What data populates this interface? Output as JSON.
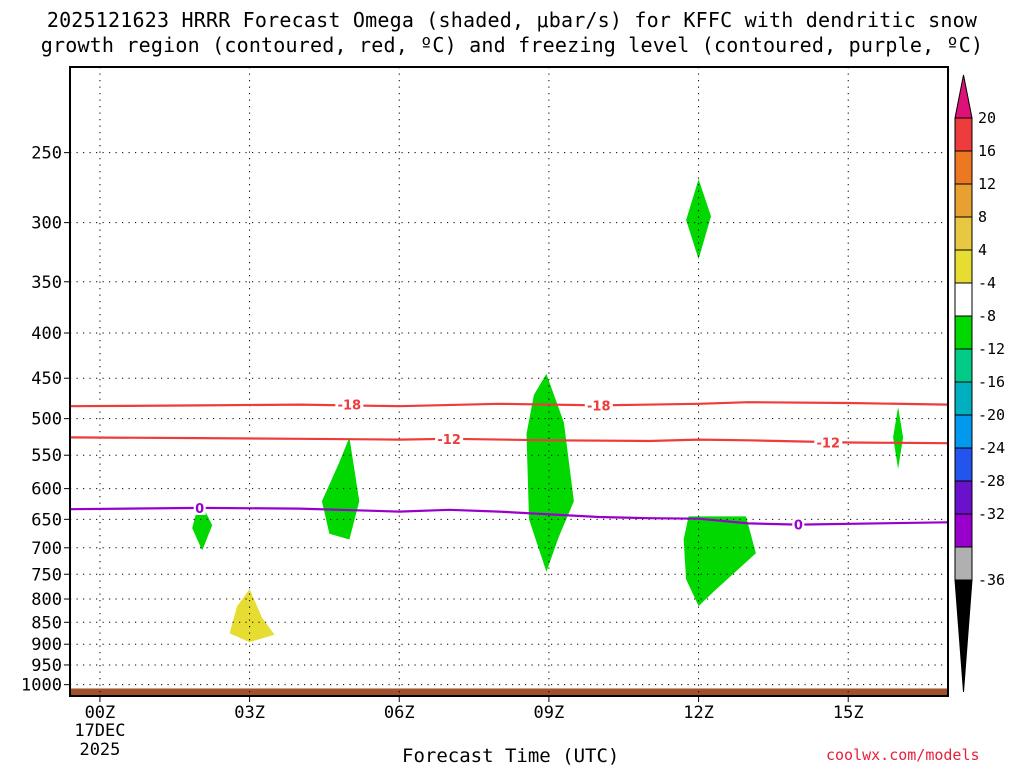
{
  "title": {
    "line1": "2025121623 HRRR Forecast Omega (shaded, μbar/s) for KFFC with dendritic snow",
    "line2": "growth region (contoured, red, ºC) and freezing level (contoured, purple, ºC)"
  },
  "credit": "coolwx.com/models",
  "chart_data": {
    "type": "heatmap",
    "xlabel": "Forecast Time (UTC)",
    "ylabel": "",
    "xlim_hours": [
      -0.6,
      17
    ],
    "ylim_hPa": [
      1030,
      200
    ],
    "y_scale": "log",
    "grid": true,
    "x_ticks": [
      {
        "hour": 0,
        "label": "00Z",
        "sub1": "17DEC",
        "sub2": "2025"
      },
      {
        "hour": 3,
        "label": "03Z"
      },
      {
        "hour": 6,
        "label": "06Z"
      },
      {
        "hour": 9,
        "label": "09Z"
      },
      {
        "hour": 12,
        "label": "12Z"
      },
      {
        "hour": 15,
        "label": "15Z"
      }
    ],
    "y_ticks": [
      "250",
      "300",
      "350",
      "400",
      "450",
      "500",
      "550",
      "600",
      "650",
      "700",
      "750",
      "800",
      "850",
      "900",
      "950",
      "1000"
    ],
    "ground_below_hPa": 1010,
    "ground_color": "#a0522d",
    "omega_regions": [
      {
        "color": "#00d800",
        "value_range": [
          -8,
          -4
        ],
        "points": [
          [
            2.0,
            618
          ],
          [
            2.25,
            660
          ],
          [
            2.05,
            705
          ],
          [
            1.85,
            665
          ]
        ]
      },
      {
        "color": "#00d800",
        "value_range": [
          -8,
          -4
        ],
        "points": [
          [
            5.0,
            525
          ],
          [
            5.2,
            620
          ],
          [
            5.0,
            685
          ],
          [
            4.6,
            675
          ],
          [
            4.45,
            620
          ],
          [
            4.8,
            560
          ]
        ]
      },
      {
        "color": "#00d800",
        "value_range": [
          -8,
          -4
        ],
        "points": [
          [
            8.95,
            445
          ],
          [
            9.3,
            505
          ],
          [
            9.5,
            620
          ],
          [
            9.2,
            680
          ],
          [
            8.95,
            745
          ],
          [
            8.6,
            650
          ],
          [
            8.55,
            520
          ],
          [
            8.7,
            470
          ]
        ]
      },
      {
        "color": "#00d800",
        "value_range": [
          -8,
          -4
        ],
        "points": [
          [
            12.0,
            268
          ],
          [
            12.25,
            295
          ],
          [
            12.0,
            330
          ],
          [
            11.75,
            298
          ]
        ]
      },
      {
        "color": "#00d800",
        "value_range": [
          -8,
          -4
        ],
        "points": [
          [
            11.8,
            645
          ],
          [
            12.95,
            645
          ],
          [
            13.15,
            710
          ],
          [
            12.3,
            785
          ],
          [
            12.0,
            815
          ],
          [
            11.75,
            760
          ],
          [
            11.7,
            685
          ]
        ]
      },
      {
        "color": "#00d800",
        "value_range": [
          -8,
          -4
        ],
        "points": [
          [
            16.0,
            485
          ],
          [
            16.1,
            525
          ],
          [
            16.0,
            570
          ],
          [
            15.9,
            525
          ]
        ]
      },
      {
        "color": "#e6dc32",
        "value_range": [
          4,
          8
        ],
        "points": [
          [
            3.0,
            780
          ],
          [
            3.25,
            840
          ],
          [
            3.5,
            878
          ],
          [
            3.0,
            895
          ],
          [
            2.6,
            875
          ],
          [
            2.75,
            815
          ]
        ]
      }
    ],
    "contours": [
      {
        "name": "-18",
        "color": "#ee3c3c",
        "label": "-18",
        "points": [
          [
            -0.6,
            484
          ],
          [
            2,
            483
          ],
          [
            4,
            482
          ],
          [
            6,
            484
          ],
          [
            8,
            481
          ],
          [
            10,
            483
          ],
          [
            12,
            481
          ],
          [
            13,
            479
          ],
          [
            15,
            480
          ],
          [
            17,
            482
          ]
        ],
        "label_at": [
          [
            5,
            482
          ],
          [
            10,
            483
          ]
        ]
      },
      {
        "name": "-12",
        "color": "#ee3c3c",
        "label": "-12",
        "points": [
          [
            -0.6,
            525
          ],
          [
            2,
            526
          ],
          [
            4,
            527
          ],
          [
            6,
            528
          ],
          [
            7,
            527
          ],
          [
            9,
            529
          ],
          [
            11,
            530
          ],
          [
            12,
            528
          ],
          [
            13,
            529
          ],
          [
            15,
            532
          ],
          [
            17,
            533
          ]
        ],
        "label_at": [
          [
            7,
            527
          ],
          [
            14.6,
            532
          ]
        ]
      },
      {
        "name": "0",
        "color": "#9900cc",
        "label": "0",
        "points": [
          [
            -0.6,
            633
          ],
          [
            2,
            631
          ],
          [
            4,
            632
          ],
          [
            6,
            637
          ],
          [
            7,
            634
          ],
          [
            8,
            637
          ],
          [
            10,
            646
          ],
          [
            11,
            648
          ],
          [
            12,
            649
          ],
          [
            13,
            657
          ],
          [
            14,
            659
          ],
          [
            17,
            655
          ]
        ],
        "label_at": [
          [
            2,
            631
          ],
          [
            14,
            659
          ]
        ]
      }
    ]
  },
  "colorbar": {
    "labels": [
      "20",
      "16",
      "12",
      "8",
      "4",
      "-4",
      "-8",
      "-12",
      "-16",
      "-20",
      "-24",
      "-28",
      "-32",
      "-36"
    ],
    "top_color": "#dd1177",
    "bottom_color": "#000000",
    "colors": [
      "#ee3c3c",
      "#ee7722",
      "#e8a030",
      "#e8c840",
      "#e6dc32",
      "#ffffff",
      "#00d800",
      "#00cc88",
      "#00b0c0",
      "#0099ee",
      "#2255ee",
      "#6a11cc",
      "#9900cc",
      "#b0b0b0"
    ]
  }
}
